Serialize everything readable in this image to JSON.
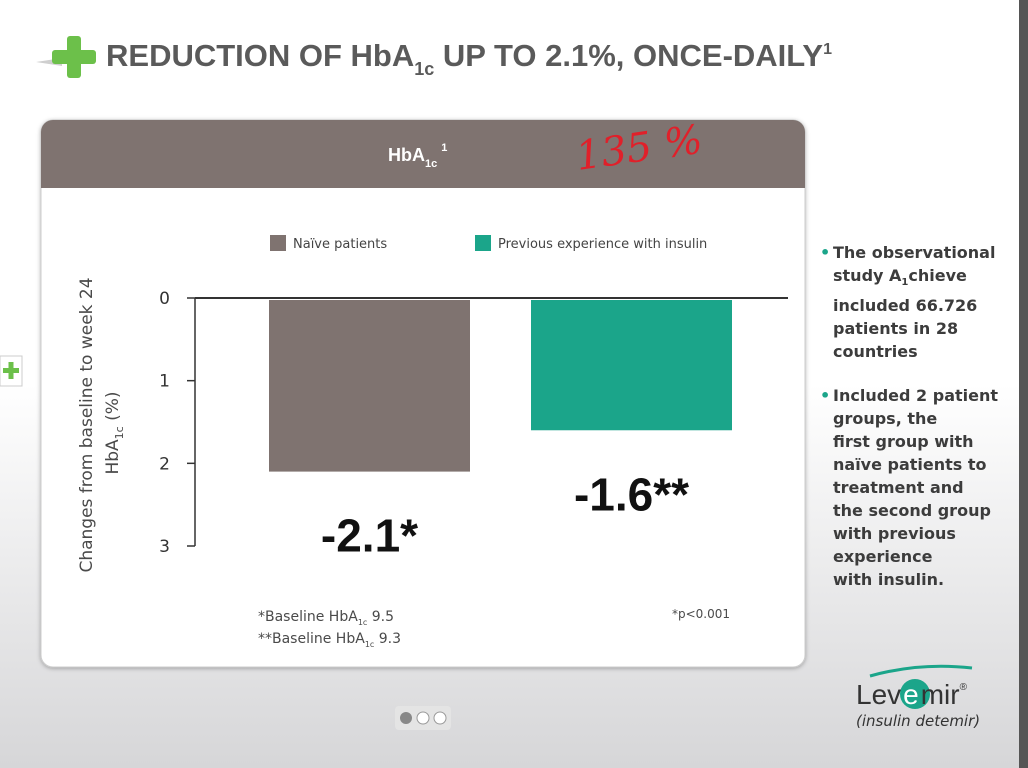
{
  "header": {
    "title": "REDUCTION OF HbA",
    "title_sub": "1c",
    "title_end": " UP TO  2.1%, ONCE-DAILY",
    "title_sup": "1"
  },
  "chart_data": {
    "type": "bar",
    "panel_title": "HbA",
    "panel_title_sub": "1c",
    "panel_title_sup": "1",
    "handwriting": "135 %",
    "ylabel": {
      "line1": "Changes from baseline to week 24",
      "line2": "HbA",
      "line2_sub": "1c",
      "line2_end": " (%)"
    },
    "categories": [
      null
    ],
    "series": [
      {
        "name": "Naïve patients",
        "color": "#7f7370",
        "values": [
          -2.1
        ],
        "value_labels": [
          "-2.1*"
        ]
      },
      {
        "name": "Previous experience with insulin",
        "color": "#1ba58a",
        "values": [
          -1.6
        ],
        "value_labels": [
          "-1.6**"
        ]
      }
    ],
    "ylim": [
      -3,
      0
    ],
    "yticks": [
      0,
      {
        "value": -1,
        "label": "1"
      },
      {
        "value": -2,
        "label": "2"
      },
      {
        "value": -3,
        "label": "3"
      }
    ],
    "grid": false,
    "legend": "top",
    "footnotes": {
      "f1": "*Baseline HbA",
      "f1_sub": "1c",
      "f1_end": " 9.5",
      "f2": "**Baseline HbA",
      "f2_sub": "1c",
      "f2_end": " 9.3",
      "p": "*p<0.001"
    }
  },
  "bullets": [
    {
      "lines": [
        "The observational",
        "study A",
        "1",
        "chieve",
        "included 66.726",
        "patients in 28",
        "countries"
      ]
    },
    {
      "lines": [
        "Included 2 patient",
        "groups, the",
        "first group with",
        "naïve patients to",
        "treatment and",
        "the second group",
        "with previous",
        "experience",
        "with insulin."
      ]
    }
  ],
  "logo": {
    "part1": "Lev",
    "part2": "e",
    "part3": "mir",
    "reg": "®",
    "subtitle": "(insulin detemir)"
  }
}
